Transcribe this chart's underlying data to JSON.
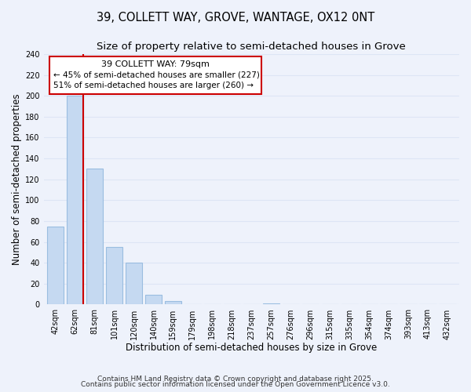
{
  "title": "39, COLLETT WAY, GROVE, WANTAGE, OX12 0NT",
  "subtitle": "Size of property relative to semi-detached houses in Grove",
  "xlabel": "Distribution of semi-detached houses by size in Grove",
  "ylabel": "Number of semi-detached properties",
  "bin_labels": [
    "42sqm",
    "62sqm",
    "81sqm",
    "101sqm",
    "120sqm",
    "140sqm",
    "159sqm",
    "179sqm",
    "198sqm",
    "218sqm",
    "237sqm",
    "257sqm",
    "276sqm",
    "296sqm",
    "315sqm",
    "335sqm",
    "354sqm",
    "374sqm",
    "393sqm",
    "413sqm",
    "432sqm"
  ],
  "bar_values": [
    75,
    200,
    130,
    55,
    40,
    9,
    3,
    0,
    0,
    0,
    0,
    1,
    0,
    0,
    0,
    0,
    0,
    0,
    0,
    0,
    0
  ],
  "bar_color": "#c5d9f1",
  "bar_edge_color": "#9abde0",
  "marker_line_color": "#cc0000",
  "annotation_title": "39 COLLETT WAY: 79sqm",
  "annotation_line1": "← 45% of semi-detached houses are smaller (227)",
  "annotation_line2": "51% of semi-detached houses are larger (260) →",
  "annotation_box_color": "#ffffff",
  "annotation_box_edge": "#cc0000",
  "ylim": [
    0,
    240
  ],
  "yticks": [
    0,
    20,
    40,
    60,
    80,
    100,
    120,
    140,
    160,
    180,
    200,
    220,
    240
  ],
  "bg_color": "#eef2fb",
  "footer_line1": "Contains HM Land Registry data © Crown copyright and database right 2025.",
  "footer_line2": "Contains public sector information licensed under the Open Government Licence v3.0.",
  "title_fontsize": 10.5,
  "subtitle_fontsize": 9.5,
  "axis_label_fontsize": 8.5,
  "tick_fontsize": 7,
  "footer_fontsize": 6.5,
  "annotation_title_fontsize": 8,
  "annotation_text_fontsize": 7.5,
  "grid_color": "#dde5f5"
}
